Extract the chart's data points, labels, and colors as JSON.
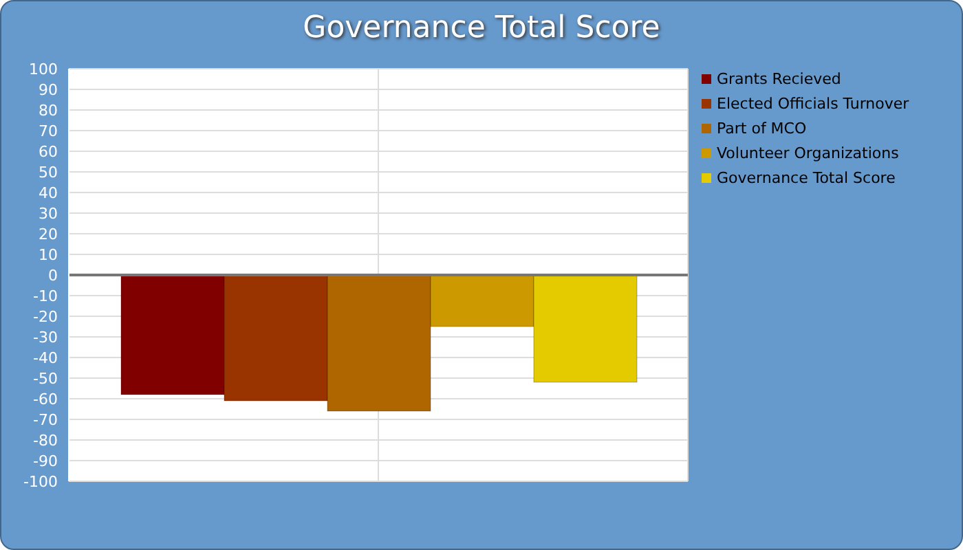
{
  "chart_data": {
    "type": "bar",
    "title": "Governance Total Score",
    "categories": [
      null
    ],
    "series": [
      {
        "name": "Grants Recieved",
        "color": "#800000",
        "values": [
          -58
        ]
      },
      {
        "name": "Elected Officials Turnover",
        "color": "#993300",
        "values": [
          -61
        ]
      },
      {
        "name": "Part of MCO",
        "color": "#b06600",
        "values": [
          -66
        ]
      },
      {
        "name": "Volunteer Organizations",
        "color": "#cc9900",
        "values": [
          -25
        ]
      },
      {
        "name": "Governance Total Score",
        "color": "#e3cb00",
        "values": [
          -52
        ]
      }
    ],
    "ylim": [
      -100,
      100
    ],
    "yticks": [
      -100,
      -90,
      -80,
      -70,
      -60,
      -50,
      -40,
      -30,
      -20,
      -10,
      0,
      10,
      20,
      30,
      40,
      50,
      60,
      70,
      80,
      90,
      100
    ],
    "grid": true,
    "legend": "right"
  }
}
